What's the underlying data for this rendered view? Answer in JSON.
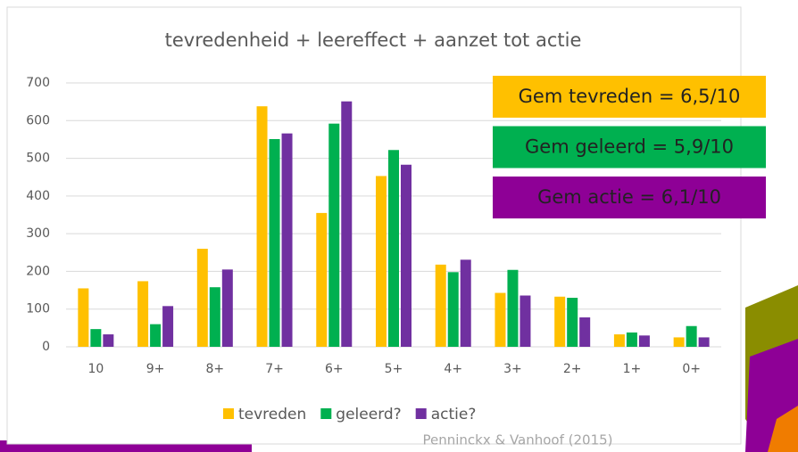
{
  "chart_data": {
    "type": "bar",
    "title": "tevredenheid + leereffect + aanzet tot actie",
    "categories": [
      "10",
      "9+",
      "8+",
      "7+",
      "6+",
      "5+",
      "4+",
      "3+",
      "2+",
      "1+",
      "0+"
    ],
    "series": [
      {
        "name": "tevreden",
        "color": "#ffc000",
        "values": [
          155,
          174,
          260,
          638,
          355,
          453,
          218,
          143,
          133,
          33,
          25
        ]
      },
      {
        "name": "geleerd?",
        "color": "#00b050",
        "values": [
          47,
          60,
          158,
          551,
          592,
          522,
          198,
          204,
          130,
          38,
          55
        ]
      },
      {
        "name": "actie?",
        "color": "#7030a0",
        "values": [
          33,
          108,
          205,
          566,
          651,
          483,
          231,
          136,
          78,
          30,
          25
        ]
      }
    ],
    "ylim": [
      0,
      700
    ],
    "yticks": [
      0,
      100,
      200,
      300,
      400,
      500,
      600,
      700
    ],
    "grid": true,
    "legend": "bottom",
    "annotations": [
      {
        "text": "Gem tevreden = 6,5/10",
        "color": "#ffc000"
      },
      {
        "text": "Gem geleerd = 5,9/10",
        "color": "#00b050"
      },
      {
        "text": "Gem actie = 6,1/10",
        "color": "#8e0096"
      }
    ],
    "source": "Penninckx & Vanhoof (2015)"
  }
}
